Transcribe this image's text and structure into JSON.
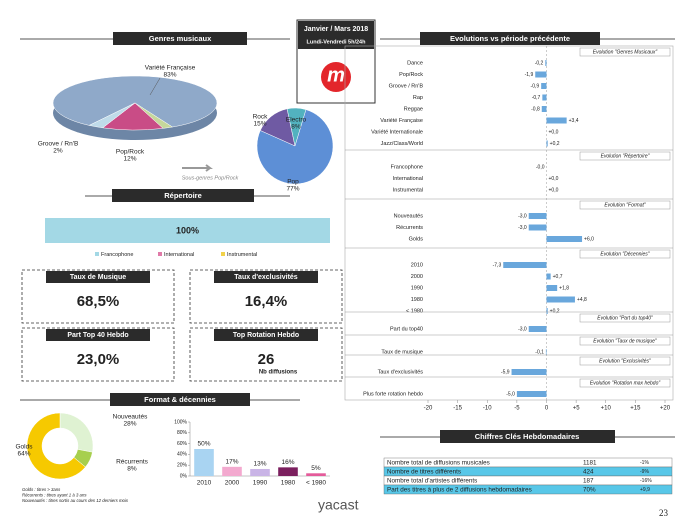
{
  "header": {
    "period": "Janvier / Mars 2018",
    "schedule": "Lundi-Vendredi 5h/24h",
    "logo": "m"
  },
  "sections": {
    "genres": "Genres musicaux",
    "repertoire": "Répertoire",
    "format": "Format & décennies",
    "evolutions": "Evolutions vs période précédente",
    "key_figures": "Chiffres Clés Hebdomadaires"
  },
  "kpis": [
    {
      "label": "Taux de Musique",
      "value": "68,5%"
    },
    {
      "label": "Taux  d'exclusivités",
      "value": "16,4%"
    },
    {
      "label": "Part Top 40 Hebdo",
      "value": "23,0%"
    },
    {
      "label": "Top Rotation Hebdo",
      "value": "26",
      "note": "Nb diffusions"
    }
  ],
  "chart_data": [
    {
      "type": "pie3d",
      "categories": [
        "Variété Française",
        "Groove / Rn'B",
        "Pop/Rock",
        null
      ],
      "values": [
        83,
        2,
        12,
        3
      ],
      "value_labels": [
        "83%",
        "2%",
        "12%",
        null
      ],
      "colors": [
        "#8fa9c9",
        "#c5d79b",
        "#c94c86",
        "#bfdbe9"
      ]
    },
    {
      "type": "pie",
      "annotation": "Sous-genres Pop/Rock",
      "categories": [
        "Rock",
        "Electro",
        "Pop"
      ],
      "values": [
        15,
        8,
        77
      ],
      "value_labels": [
        "15%",
        "8%",
        "77%"
      ],
      "colors": [
        "#6f5aa3",
        "#52b2bf",
        "#5d8fd6"
      ]
    },
    {
      "type": "stacked-bar",
      "series": [
        {
          "name": "Francophone",
          "color": "#a3d8e5",
          "values": [
            100
          ],
          "value_labels": [
            "100%"
          ]
        },
        {
          "name": "International",
          "color": "#e07aa8",
          "values": [
            0
          ]
        },
        {
          "name": "Instrumental",
          "color": "#f2d24a",
          "values": [
            0
          ]
        }
      ]
    },
    {
      "type": "donut",
      "categories": [
        "Nouveautés",
        "Récurrents",
        "Golds"
      ],
      "values": [
        28,
        8,
        64
      ],
      "value_labels": [
        "28%",
        "8%",
        "64%"
      ],
      "colors": [
        "#dff2d2",
        "#a7cf4e",
        "#f6c900"
      ],
      "notes": [
        "Golds : titres > 3ans",
        "Récurrents : titres ayant 1 à 3 ans",
        "Nouveautés : titres sortis au cours des 12 derniers mois"
      ]
    },
    {
      "type": "bar",
      "categories": [
        "2010",
        "2000",
        "1990",
        "1980",
        "< 1980"
      ],
      "values": [
        50,
        17,
        13,
        16,
        5
      ],
      "value_labels": [
        "50%",
        "17%",
        "13%",
        "16%",
        "5%"
      ],
      "colors": [
        "#a9d4f2",
        "#f3a9cf",
        "#c9b4e6",
        "#7b1f5e",
        "#e45a9a"
      ],
      "ylim": [
        0,
        100
      ],
      "yticks": [
        {
          "value": 0,
          "label": "0%"
        },
        {
          "value": 20,
          "label": "20%"
        },
        {
          "value": 40,
          "label": "40%"
        },
        {
          "value": 60,
          "label": "60%"
        },
        {
          "value": 80,
          "label": "80%"
        },
        {
          "value": 100,
          "label": "100%"
        }
      ]
    },
    {
      "type": "hbar",
      "color": "#69a7dc",
      "xlim": [
        -20,
        20
      ],
      "xticks": [
        -20,
        -15,
        -10,
        -5,
        0,
        {
          "value": 5,
          "label": "+5"
        },
        {
          "value": 10,
          "label": "+10"
        },
        {
          "value": 15,
          "label": "+15"
        },
        {
          "value": 20,
          "label": "+20"
        }
      ],
      "groups": [
        {
          "title": "Evolution \"Genres Musicaux\"",
          "categories": [
            "Dance",
            "Pop/Rock",
            "Groove / Rn'B",
            "Rap",
            "Reggae",
            "Variété Française",
            "Variété Internationale",
            "Jazz/Class/World"
          ],
          "values": [
            -0.2,
            -1.9,
            -0.9,
            -0.7,
            -0.8,
            3.4,
            0,
            0.2
          ],
          "value_labels": [
            "-0,2",
            "-1,9",
            "-0,9",
            "-0,7",
            "-0,8",
            "+3,4",
            "+0,0",
            "+0,2"
          ]
        },
        {
          "title": "Evolution \"Répertoire\"",
          "categories": [
            "Francophone",
            "International",
            "Instrumental"
          ],
          "values": [
            0,
            0,
            0
          ],
          "value_labels": [
            "-0,0",
            "+0,0",
            "+0,0"
          ]
        },
        {
          "title": "Evolution \"Format\"",
          "categories": [
            "Nouveautés",
            "Récurrents",
            "Golds"
          ],
          "values": [
            -3.0,
            -3.0,
            6.0
          ],
          "value_labels": [
            "-3,0",
            "-3,0",
            "+6,0"
          ]
        },
        {
          "title": "Evolution \"Décennies\"",
          "categories": [
            "2010",
            "2000",
            "1990",
            "1980",
            "< 1980"
          ],
          "values": [
            -7.3,
            0.7,
            1.8,
            4.8,
            0.2
          ],
          "value_labels": [
            "-7,3",
            "+0,7",
            "+1,8",
            "+4,8",
            "+0,2"
          ]
        },
        {
          "title": "Evolution \"Part du top40\"",
          "categories": [
            "Part du top40"
          ],
          "values": [
            -3.0
          ],
          "value_labels": [
            "-3,0"
          ]
        },
        {
          "title": "Evolution \"Taux de musique\"",
          "categories": [
            "Taux de musique"
          ],
          "values": [
            -0.1
          ],
          "value_labels": [
            "-0,1"
          ]
        },
        {
          "title": "Evolution \"Exclusivités\"",
          "categories": [
            "Taux d'exclusivités"
          ],
          "values": [
            -5.9
          ],
          "value_labels": [
            "-5,9"
          ]
        },
        {
          "title": "Evolution \"Rotation max hebdo\"",
          "categories": [
            "Plus forte rotation hebdo"
          ],
          "values": [
            -5.0
          ],
          "value_labels": [
            "-5,0"
          ]
        }
      ]
    }
  ],
  "table": {
    "rows": [
      [
        "Nombre total de diffusions musicales",
        "1181",
        "-1%"
      ],
      [
        "Nombre de titres différents",
        "424",
        "-9%"
      ],
      [
        "Nombre total d'artistes différents",
        "187",
        "-16%"
      ],
      [
        "Part des titres à plus de 2 diffusions hebdomadaires",
        "70%",
        "+9,9"
      ]
    ]
  },
  "footer": {
    "brand": "yacast",
    "page": "23"
  }
}
